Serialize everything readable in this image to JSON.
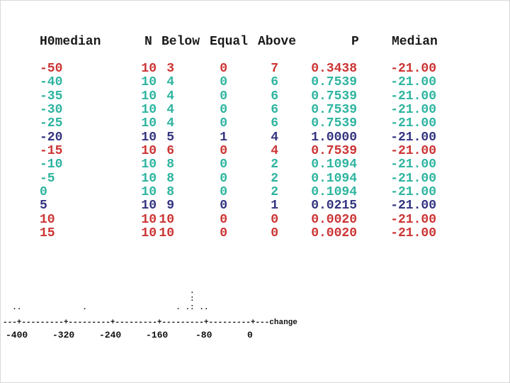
{
  "palette": {
    "red": "#cc3333",
    "teal": "#2db4a0",
    "navy": "#333380",
    "header": "#1a1a1a",
    "plot": "#111111"
  },
  "table": {
    "headers": [
      "H0median",
      "N",
      "Below",
      "Equal",
      "Above",
      "P",
      "Median"
    ],
    "rows": [
      {
        "color": "red",
        "cells": [
          "-50",
          "10",
          "3",
          "0",
          "7",
          "0.3438",
          "-21.00"
        ]
      },
      {
        "color": "teal",
        "cells": [
          "-40",
          "10",
          "4",
          "0",
          "6",
          "0.7539",
          "-21.00"
        ]
      },
      {
        "color": "teal",
        "cells": [
          "-35",
          "10",
          "4",
          "0",
          "6",
          "0.7539",
          "-21.00"
        ]
      },
      {
        "color": "teal",
        "cells": [
          "-30",
          "10",
          "4",
          "0",
          "6",
          "0.7539",
          "-21.00"
        ]
      },
      {
        "color": "teal",
        "cells": [
          "-25",
          "10",
          "4",
          "0",
          "6",
          "0.7539",
          "-21.00"
        ]
      },
      {
        "color": "navy",
        "cells": [
          "-20",
          "10",
          "5",
          "1",
          "4",
          "1.0000",
          "-21.00"
        ]
      },
      {
        "color": "red",
        "cells": [
          "-15",
          "10",
          "6",
          "0",
          "4",
          "0.7539",
          "-21.00"
        ]
      },
      {
        "color": "teal",
        "cells": [
          "-10",
          "10",
          "8",
          "0",
          "2",
          "0.1094",
          "-21.00"
        ]
      },
      {
        "color": "teal",
        "cells": [
          "-5",
          "10",
          "8",
          "0",
          "2",
          "0.1094",
          "-21.00"
        ]
      },
      {
        "color": "teal",
        "cells": [
          "0",
          "10",
          "8",
          "0",
          "2",
          "0.1094",
          "-21.00"
        ]
      },
      {
        "color": "navy",
        "cells": [
          "5",
          "10",
          "9",
          "0",
          "1",
          "0.0215",
          "-21.00"
        ]
      },
      {
        "color": "red",
        "cells": [
          "10",
          "10",
          "10",
          "0",
          "0",
          "0.0020",
          "-21.00"
        ]
      },
      {
        "color": "red",
        "cells": [
          "15",
          "10",
          "10",
          "0",
          "0",
          "0.0020",
          "-21.00"
        ]
      }
    ]
  },
  "plot": {
    "dots_row_1": "                                        .",
    "dots_row_2": "                                        :",
    "dots_row_3": "  ..             .                   . .: ..",
    "axis": "---+---------+---------+---------+---------+---------+---change",
    "axis_labels": [
      "-400",
      "-320",
      "-240",
      "-160",
      "-80",
      "0"
    ],
    "axis_title": "change"
  },
  "chart_data": {
    "type": "dotplot",
    "xlabel": "change",
    "x_ticks": [
      -400,
      -320,
      -240,
      -160,
      -80,
      0
    ],
    "xlim": [
      -424,
      80
    ],
    "values_estimated": [
      -408,
      -400,
      -288,
      -128,
      -112,
      -104,
      -104,
      -104,
      -104,
      -104,
      -88,
      -80
    ],
    "title": "",
    "legend": "none",
    "grid": false
  }
}
